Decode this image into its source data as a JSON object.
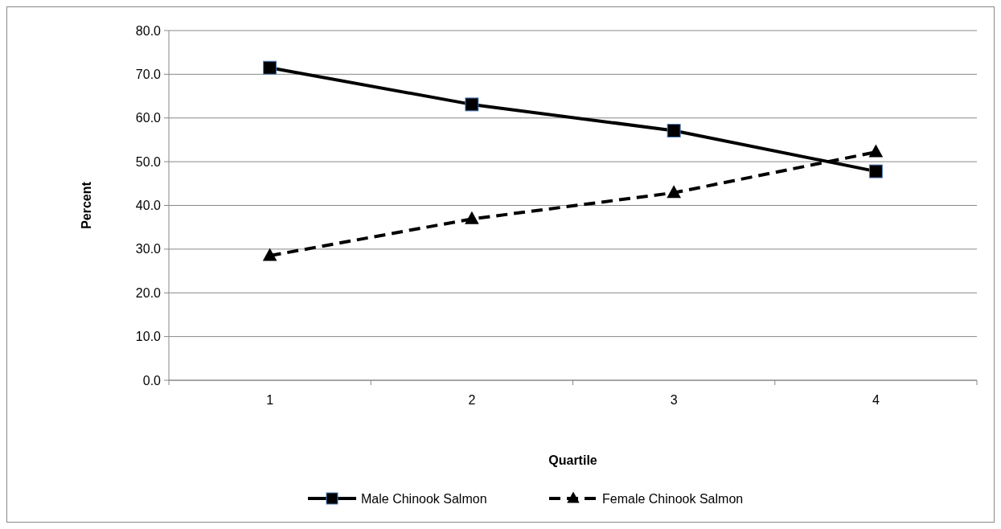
{
  "chart_data": {
    "type": "line",
    "xlabel": "Quartile",
    "ylabel": "Percent",
    "categories": [
      "1",
      "2",
      "3",
      "4"
    ],
    "series": [
      {
        "name": "Male Chinook Salmon",
        "color": "#000000",
        "values": [
          71.5,
          63.1,
          57.1,
          47.8
        ],
        "marker": "square",
        "line_style": "solid"
      },
      {
        "name": "Female Chinook Salmon",
        "color": "#000000",
        "values": [
          28.5,
          36.9,
          42.9,
          52.2
        ],
        "marker": "triangle",
        "line_style": "dashed"
      }
    ],
    "ylim": [
      0,
      80
    ],
    "yticks": [
      {
        "value": 0,
        "label": "0.0"
      },
      {
        "value": 10,
        "label": "10.0"
      },
      {
        "value": 20,
        "label": "20.0"
      },
      {
        "value": 30,
        "label": "30.0"
      },
      {
        "value": 40,
        "label": "40.0"
      },
      {
        "value": 50,
        "label": "50.0"
      },
      {
        "value": 60,
        "label": "60.0"
      },
      {
        "value": 70,
        "label": "70.0"
      },
      {
        "value": 80,
        "label": "80.0"
      }
    ],
    "grid": "y",
    "legend": "bottom"
  }
}
